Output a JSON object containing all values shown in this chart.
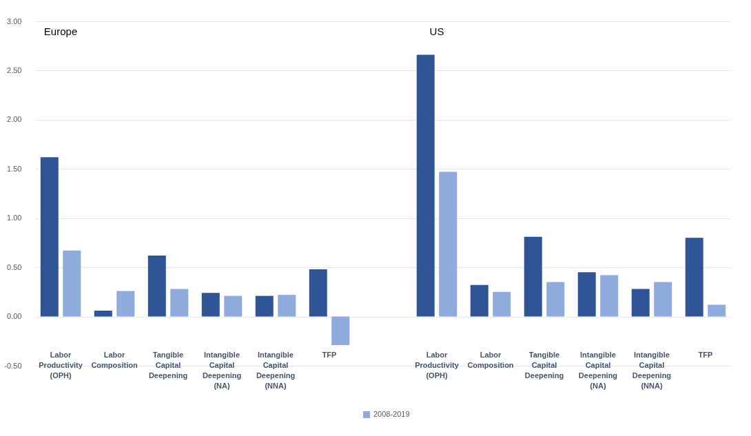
{
  "chart_data": {
    "type": "bar",
    "categories": [
      "Labor Productivity (OPH)",
      "Labor Composition",
      "Tangible Capital Deepening",
      "Intangible Capital Deepening (NA)",
      "Intangible Capital Deepening (NNA)",
      "TFP",
      null,
      "Labor Productivity (OPH)",
      "Labor Composition",
      "Tangible Capital Deepening",
      "Intangible Capital Deepening (NA)",
      "Intangible Capital Deepening (NNA)",
      "TFP"
    ],
    "series": [
      {
        "color": "#2f5597",
        "values": [
          1.62,
          0.06,
          0.62,
          0.24,
          0.21,
          0.48,
          null,
          2.66,
          0.32,
          0.81,
          0.45,
          0.28,
          0.8
        ]
      },
      {
        "name": "2008-2019",
        "color": "#8faadc",
        "values": [
          0.67,
          0.26,
          0.28,
          0.21,
          0.22,
          -0.29,
          null,
          1.47,
          0.25,
          0.35,
          0.42,
          0.35,
          0.12
        ]
      }
    ],
    "ylim": [
      -0.5,
      3
    ],
    "yticks": [
      {
        "value": -0.5,
        "label": "-0.50"
      },
      {
        "value": 0,
        "label": "0.00"
      },
      {
        "value": 0.5,
        "label": "0.50"
      },
      {
        "value": 1,
        "label": "1.00"
      },
      {
        "value": 1.5,
        "label": "1.50"
      },
      {
        "value": 2,
        "label": "2.00"
      },
      {
        "value": 2.5,
        "label": "2.50"
      },
      {
        "value": 3,
        "label": "3.00"
      }
    ],
    "grid": "y",
    "legend": "bottom",
    "annotations": [
      "Europe",
      "US"
    ]
  }
}
